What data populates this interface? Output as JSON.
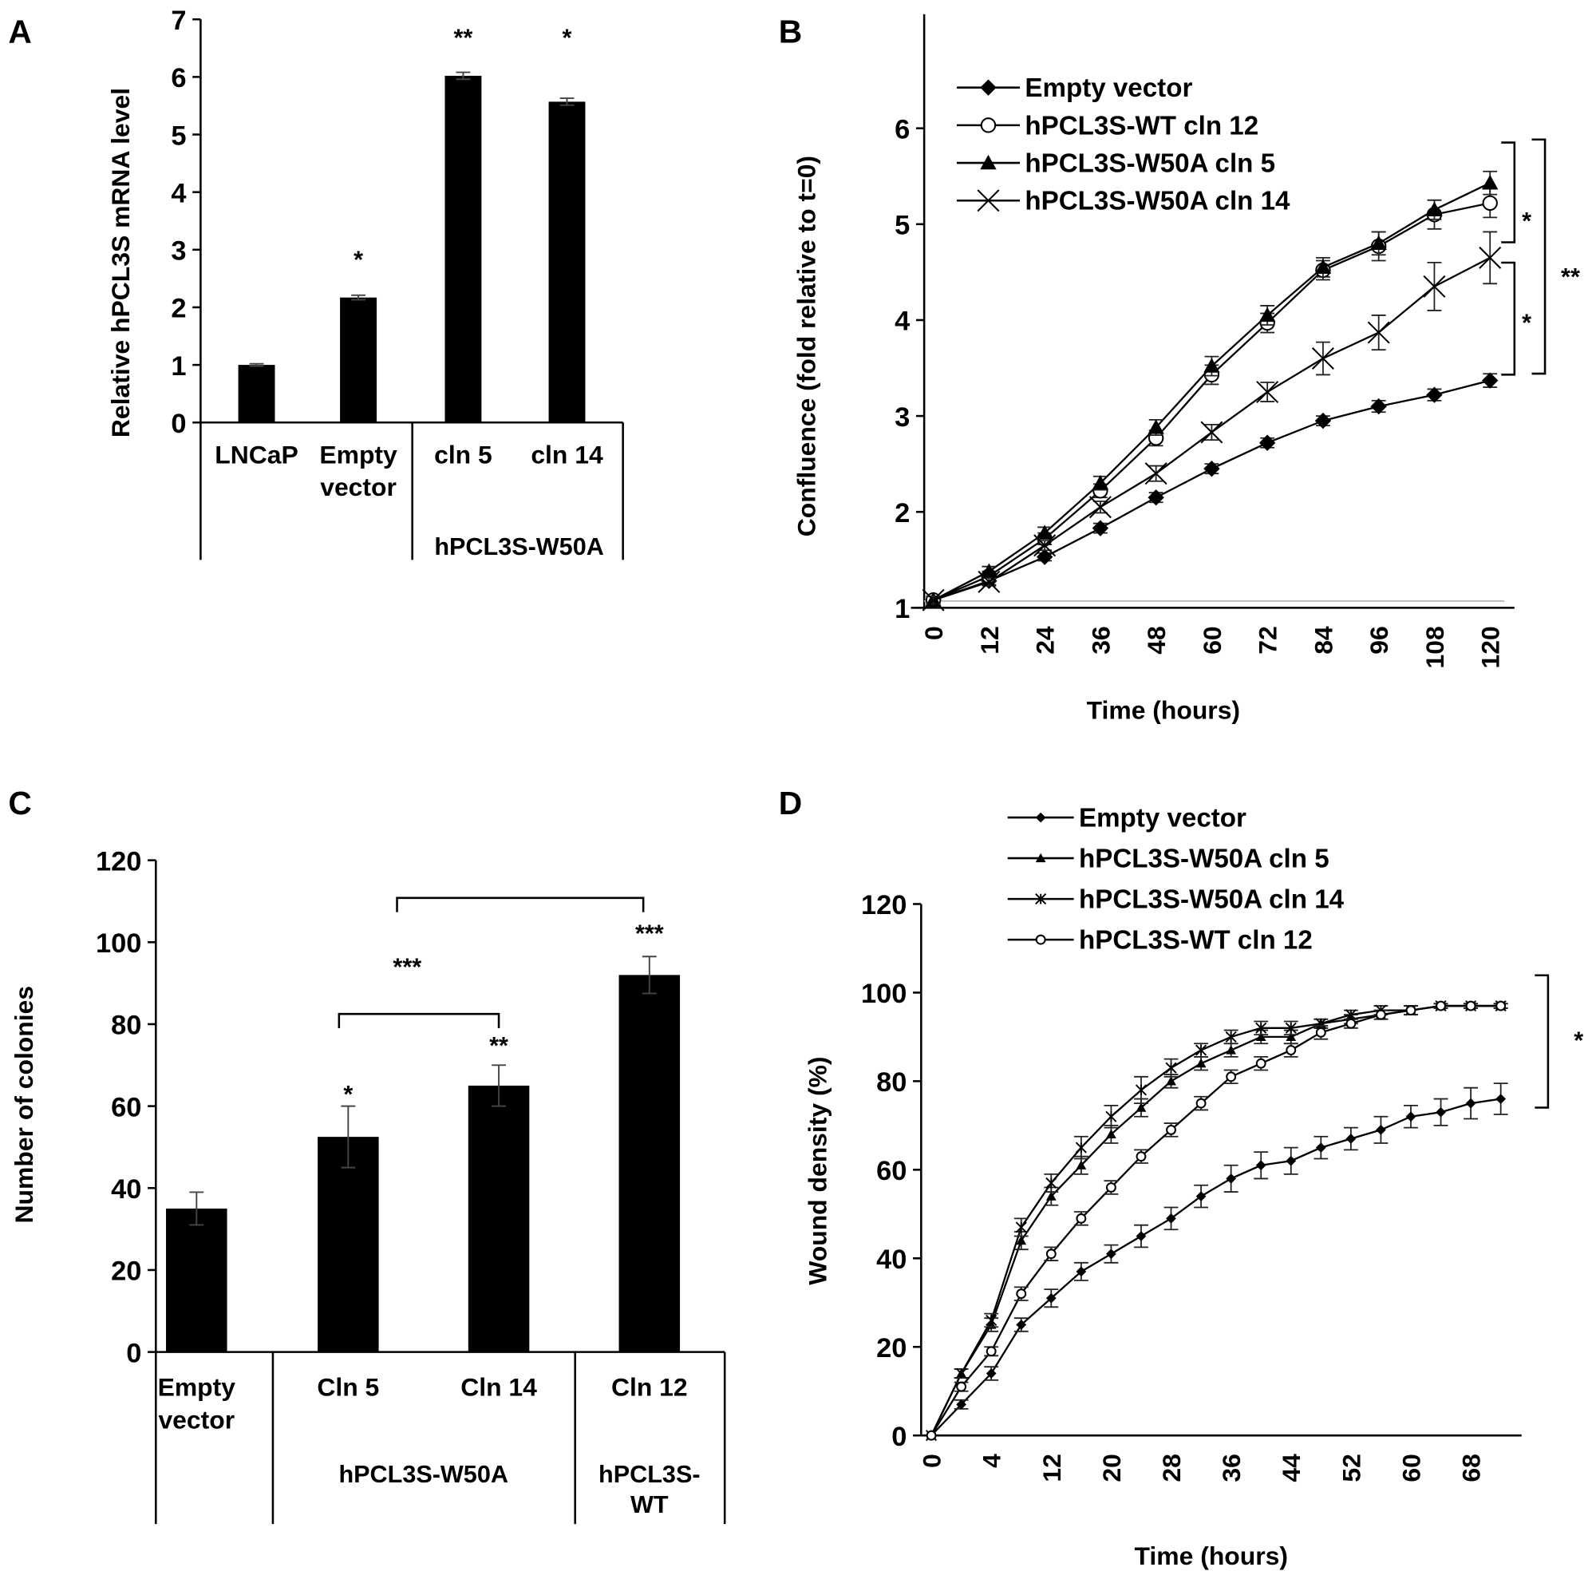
{
  "chart_data": [
    {
      "panel": "A",
      "type": "bar",
      "ylabel": "Relative hPCL3S mRNA level",
      "ylim": [
        0,
        7
      ],
      "yticks": [
        "0",
        "1",
        "2",
        "3",
        "4",
        "5",
        "6",
        "7"
      ],
      "categories": [
        "LNCaP",
        "Empty vector",
        "cln 5",
        "cln 14"
      ],
      "category_lines": [
        [
          "LNCaP"
        ],
        [
          "Empty",
          "vector"
        ],
        [
          "cln 5"
        ],
        [
          "cln 14"
        ]
      ],
      "group_labels": [
        "hPCL3S-W50A"
      ],
      "values": [
        1.0,
        2.17,
        6.02,
        5.57
      ],
      "errors": [
        0.02,
        0.04,
        0.06,
        0.06
      ],
      "significance": [
        "",
        "*",
        "**",
        "*"
      ]
    },
    {
      "panel": "B",
      "type": "line",
      "xlabel": "Time (hours)",
      "ylabel": "Confluence  (fold relative to t=0)",
      "ylim": [
        1,
        6.8
      ],
      "yticks": [
        "1",
        "2",
        "3",
        "4",
        "5",
        "6"
      ],
      "x": [
        0,
        12,
        24,
        36,
        48,
        60,
        72,
        84,
        96,
        108,
        120
      ],
      "xtick_labels": [
        "0",
        "12",
        "24",
        "36",
        "48",
        "60",
        "72",
        "84",
        "96",
        "108",
        "120"
      ],
      "legend": "top-left",
      "series": [
        {
          "name": "Empty vector",
          "marker": "diamond",
          "values": [
            1.08,
            1.28,
            1.53,
            1.83,
            2.15,
            2.45,
            2.72,
            2.95,
            3.1,
            3.22,
            3.37
          ],
          "errors": [
            0.04,
            0.04,
            0.04,
            0.05,
            0.05,
            0.05,
            0.05,
            0.05,
            0.06,
            0.06,
            0.07
          ]
        },
        {
          "name": "hPCL3S-WT cln 12",
          "marker": "circle-open",
          "values": [
            1.08,
            1.33,
            1.72,
            2.22,
            2.77,
            3.43,
            3.97,
            4.52,
            4.77,
            5.1,
            5.22
          ],
          "errors": [
            0.04,
            0.05,
            0.06,
            0.07,
            0.08,
            0.1,
            0.1,
            0.1,
            0.15,
            0.15,
            0.15
          ]
        },
        {
          "name": "hPCL3S-W50A cln 5",
          "marker": "triangle",
          "values": [
            1.08,
            1.38,
            1.78,
            2.3,
            2.88,
            3.52,
            4.05,
            4.55,
            4.8,
            5.15,
            5.43
          ],
          "errors": [
            0.04,
            0.05,
            0.06,
            0.07,
            0.08,
            0.1,
            0.1,
            0.1,
            0.12,
            0.1,
            0.12
          ]
        },
        {
          "name": "hPCL3S-W50A cln 14",
          "marker": "x",
          "values": [
            1.08,
            1.27,
            1.65,
            2.05,
            2.4,
            2.83,
            3.25,
            3.6,
            3.87,
            4.35,
            4.65
          ],
          "errors": [
            0.04,
            0.04,
            0.05,
            0.06,
            0.08,
            0.08,
            0.1,
            0.17,
            0.18,
            0.25,
            0.27
          ]
        }
      ],
      "significance": [
        "*",
        "*",
        "**"
      ]
    },
    {
      "panel": "C",
      "type": "bar",
      "ylabel": "Number of colonies",
      "ylim": [
        0,
        120
      ],
      "yticks": [
        "0",
        "20",
        "40",
        "60",
        "80",
        "100",
        "120"
      ],
      "categories": [
        "Empty vector",
        "Cln 5",
        "Cln 14",
        "Cln 12"
      ],
      "category_lines": [
        [
          "Empty",
          "vector"
        ],
        [
          "Cln 5"
        ],
        [
          "Cln 14"
        ],
        [
          "Cln 12"
        ]
      ],
      "group_labels": [
        "hPCL3S-W50A",
        "hPCL3S-",
        "WT"
      ],
      "values": [
        35,
        52.5,
        65,
        92
      ],
      "errors": [
        4,
        7.5,
        5,
        4.5
      ],
      "significance": [
        "",
        "*",
        "**",
        "***"
      ],
      "brackets": [
        "",
        "***"
      ]
    },
    {
      "panel": "D",
      "type": "line",
      "xlabel": "Time (hours)",
      "ylabel": "Wound density (%)",
      "ylim": [
        0,
        120
      ],
      "yticks": [
        "0",
        "20",
        "40",
        "60",
        "80",
        "100",
        "120"
      ],
      "x": [
        0,
        2,
        4,
        8,
        12,
        16,
        20,
        24,
        28,
        32,
        36,
        40,
        44,
        48,
        52,
        56,
        60,
        64,
        68,
        72
      ],
      "xtick_labels": [
        "0",
        "4",
        "12",
        "20",
        "28",
        "36",
        "44",
        "52",
        "60",
        "68"
      ],
      "legend": "top",
      "series": [
        {
          "name": "Empty vector",
          "marker": "diamond",
          "values": [
            0,
            7,
            14,
            25,
            31,
            37,
            41,
            45,
            49,
            54,
            58,
            61,
            62,
            65,
            67,
            69,
            72,
            73,
            75,
            76
          ],
          "errors": [
            0,
            1,
            1.5,
            1.5,
            2,
            2,
            2,
            2.5,
            2.5,
            2.5,
            3,
            3,
            3,
            2.5,
            2.5,
            3,
            2.5,
            3,
            3.5,
            3.5
          ]
        },
        {
          "name": "hPCL3S-W50A cln 5",
          "marker": "triangle",
          "values": [
            0,
            14,
            25,
            44,
            54,
            61,
            68,
            74,
            80,
            84,
            87,
            90,
            90,
            93,
            94,
            95,
            96,
            97,
            97,
            97
          ],
          "errors": [
            0,
            1,
            1.5,
            2,
            2,
            2,
            2,
            2,
            1.5,
            1.5,
            1.5,
            1.5,
            1.5,
            1,
            1,
            1,
            1,
            0.5,
            0.5,
            0.5
          ]
        },
        {
          "name": "hPCL3S-W50A cln 14",
          "marker": "asterisk",
          "values": [
            0,
            14,
            26,
            47,
            57,
            65,
            72,
            78,
            83,
            87,
            90,
            92,
            92,
            93,
            95,
            96,
            96,
            97,
            97,
            97
          ],
          "errors": [
            0,
            1,
            1.5,
            2,
            2,
            2.5,
            2.5,
            3,
            2,
            1.5,
            1.5,
            1.5,
            1.5,
            1,
            1,
            1,
            1,
            0.5,
            0.5,
            0.5
          ]
        },
        {
          "name": "hPCL3S-WT cln 12",
          "marker": "circle-open",
          "values": [
            0,
            11,
            19,
            32,
            41,
            49,
            56,
            63,
            69,
            75,
            81,
            84,
            87,
            91,
            93,
            95,
            96,
            97,
            97,
            97
          ],
          "errors": [
            0,
            1,
            1,
            1.5,
            1.5,
            1.5,
            1.5,
            1.5,
            1.5,
            1.5,
            1.5,
            1.5,
            1.5,
            1.5,
            1,
            1,
            1,
            0.5,
            0.5,
            0.5
          ]
        }
      ],
      "significance": [
        "*"
      ]
    }
  ],
  "panels": {
    "a": "A",
    "b": "B",
    "c": "C",
    "d": "D"
  }
}
